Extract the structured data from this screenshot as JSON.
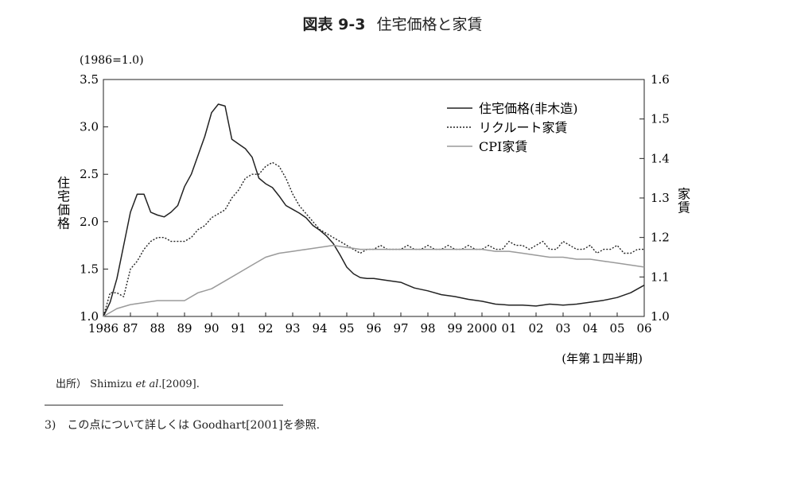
{
  "figure": {
    "number": "図表 9-3",
    "title": "住宅価格と家賃",
    "source_label": "出所）",
    "source_authors": "Shimizu ",
    "source_etal": "et al.",
    "source_year": "[2009].",
    "footnote": "3)　この点について詳しくは Goodhart[2001]を参照."
  },
  "chart_data": {
    "type": "line",
    "index_note": "(1986=1.0)",
    "left_axis_label": "住宅価格",
    "right_axis_label": "家賃",
    "x_unit_note": "(年第１四半期)",
    "ylim_left": [
      1.0,
      3.5
    ],
    "ylim_right": [
      1.0,
      1.6
    ],
    "yticks_left": [
      "1.0",
      "1.5",
      "2.0",
      "2.5",
      "3.0",
      "3.5"
    ],
    "yticks_right": [
      "1.0",
      "1.1",
      "1.2",
      "1.3",
      "1.4",
      "1.5",
      "1.6"
    ],
    "xlim": [
      1986,
      2006
    ],
    "xticks": [
      "1986",
      "87",
      "88",
      "89",
      "90",
      "91",
      "92",
      "93",
      "94",
      "95",
      "96",
      "97",
      "98",
      "99",
      "2000",
      "01",
      "02",
      "03",
      "04",
      "05",
      "06"
    ],
    "legend_position": "top-right",
    "grid": false,
    "series": [
      {
        "name": "住宅価格(非木造)",
        "axis": "left",
        "style": "solid",
        "color": "#222222",
        "x": [
          1986.0,
          1986.25,
          1986.5,
          1986.75,
          1987.0,
          1987.25,
          1987.5,
          1987.75,
          1988.0,
          1988.25,
          1988.5,
          1988.75,
          1989.0,
          1989.25,
          1989.5,
          1989.75,
          1990.0,
          1990.25,
          1990.5,
          1990.75,
          1991.0,
          1991.25,
          1991.5,
          1991.75,
          1992.0,
          1992.25,
          1992.5,
          1992.75,
          1993.0,
          1993.25,
          1993.5,
          1993.75,
          1994.0,
          1994.25,
          1994.5,
          1994.75,
          1995.0,
          1995.25,
          1995.5,
          1995.75,
          1996.0,
          1996.5,
          1997.0,
          1997.5,
          1998.0,
          1998.5,
          1999.0,
          1999.5,
          2000.0,
          2000.5,
          2001.0,
          2001.5,
          2002.0,
          2002.5,
          2003.0,
          2003.5,
          2004.0,
          2004.5,
          2005.0,
          2005.5,
          2006.0
        ],
        "y": [
          1.0,
          1.15,
          1.4,
          1.75,
          2.1,
          2.29,
          2.29,
          2.1,
          2.07,
          2.05,
          2.1,
          2.17,
          2.37,
          2.5,
          2.7,
          2.9,
          3.15,
          3.24,
          3.22,
          2.87,
          2.82,
          2.77,
          2.68,
          2.46,
          2.4,
          2.36,
          2.27,
          2.17,
          2.13,
          2.09,
          2.04,
          1.96,
          1.91,
          1.85,
          1.77,
          1.65,
          1.52,
          1.45,
          1.41,
          1.4,
          1.4,
          1.38,
          1.36,
          1.3,
          1.27,
          1.23,
          1.21,
          1.18,
          1.16,
          1.13,
          1.12,
          1.12,
          1.11,
          1.13,
          1.12,
          1.13,
          1.15,
          1.17,
          1.2,
          1.25,
          1.33
        ]
      },
      {
        "name": "リクルート家賃",
        "axis": "right",
        "style": "dotted",
        "color": "#222222",
        "x": [
          1986.0,
          1986.25,
          1986.5,
          1986.75,
          1987.0,
          1987.25,
          1987.5,
          1987.75,
          1988.0,
          1988.25,
          1988.5,
          1988.75,
          1989.0,
          1989.25,
          1989.5,
          1989.75,
          1990.0,
          1990.25,
          1990.5,
          1990.75,
          1991.0,
          1991.25,
          1991.5,
          1991.75,
          1992.0,
          1992.25,
          1992.5,
          1992.75,
          1993.0,
          1993.25,
          1993.5,
          1993.75,
          1994.0,
          1994.25,
          1994.5,
          1994.75,
          1995.0,
          1995.25,
          1995.5,
          1995.75,
          1996.0,
          1996.25,
          1996.5,
          1996.75,
          1997.0,
          1997.25,
          1997.5,
          1997.75,
          1998.0,
          1998.25,
          1998.5,
          1998.75,
          1999.0,
          1999.25,
          1999.5,
          1999.75,
          2000.0,
          2000.25,
          2000.5,
          2000.75,
          2001.0,
          2001.25,
          2001.5,
          2001.75,
          2002.0,
          2002.25,
          2002.5,
          2002.75,
          2003.0,
          2003.25,
          2003.5,
          2003.75,
          2004.0,
          2004.25,
          2004.5,
          2004.75,
          2005.0,
          2005.25,
          2005.5,
          2005.75,
          2006.0
        ],
        "y": [
          1.0,
          1.06,
          1.06,
          1.05,
          1.12,
          1.14,
          1.17,
          1.19,
          1.2,
          1.2,
          1.19,
          1.19,
          1.19,
          1.2,
          1.22,
          1.23,
          1.25,
          1.26,
          1.27,
          1.3,
          1.32,
          1.35,
          1.36,
          1.36,
          1.38,
          1.39,
          1.38,
          1.35,
          1.31,
          1.28,
          1.26,
          1.24,
          1.22,
          1.21,
          1.2,
          1.19,
          1.18,
          1.17,
          1.16,
          1.17,
          1.17,
          1.18,
          1.17,
          1.17,
          1.17,
          1.18,
          1.17,
          1.17,
          1.18,
          1.17,
          1.17,
          1.18,
          1.17,
          1.17,
          1.18,
          1.17,
          1.17,
          1.18,
          1.17,
          1.17,
          1.19,
          1.18,
          1.18,
          1.17,
          1.18,
          1.19,
          1.17,
          1.17,
          1.19,
          1.18,
          1.17,
          1.17,
          1.18,
          1.16,
          1.17,
          1.17,
          1.18,
          1.16,
          1.16,
          1.17,
          1.17
        ]
      },
      {
        "name": "CPI家賃",
        "axis": "right",
        "style": "solid",
        "color": "#9a9a9a",
        "x": [
          1986.0,
          1986.5,
          1987.0,
          1987.5,
          1988.0,
          1988.5,
          1989.0,
          1989.5,
          1990.0,
          1990.5,
          1991.0,
          1991.5,
          1992.0,
          1992.5,
          1993.0,
          1993.5,
          1994.0,
          1994.5,
          1995.0,
          1995.5,
          1996.0,
          1996.5,
          1997.0,
          1997.5,
          1998.0,
          1998.5,
          1999.0,
          1999.5,
          2000.0,
          2000.5,
          2001.0,
          2001.5,
          2002.0,
          2002.5,
          2003.0,
          2003.5,
          2004.0,
          2004.5,
          2005.0,
          2005.5,
          2006.0
        ],
        "y": [
          1.0,
          1.02,
          1.03,
          1.035,
          1.04,
          1.04,
          1.04,
          1.06,
          1.07,
          1.09,
          1.11,
          1.13,
          1.15,
          1.16,
          1.165,
          1.17,
          1.175,
          1.18,
          1.175,
          1.17,
          1.17,
          1.17,
          1.17,
          1.17,
          1.17,
          1.17,
          1.17,
          1.17,
          1.17,
          1.165,
          1.165,
          1.16,
          1.155,
          1.15,
          1.15,
          1.145,
          1.145,
          1.14,
          1.135,
          1.13,
          1.125
        ]
      }
    ]
  }
}
